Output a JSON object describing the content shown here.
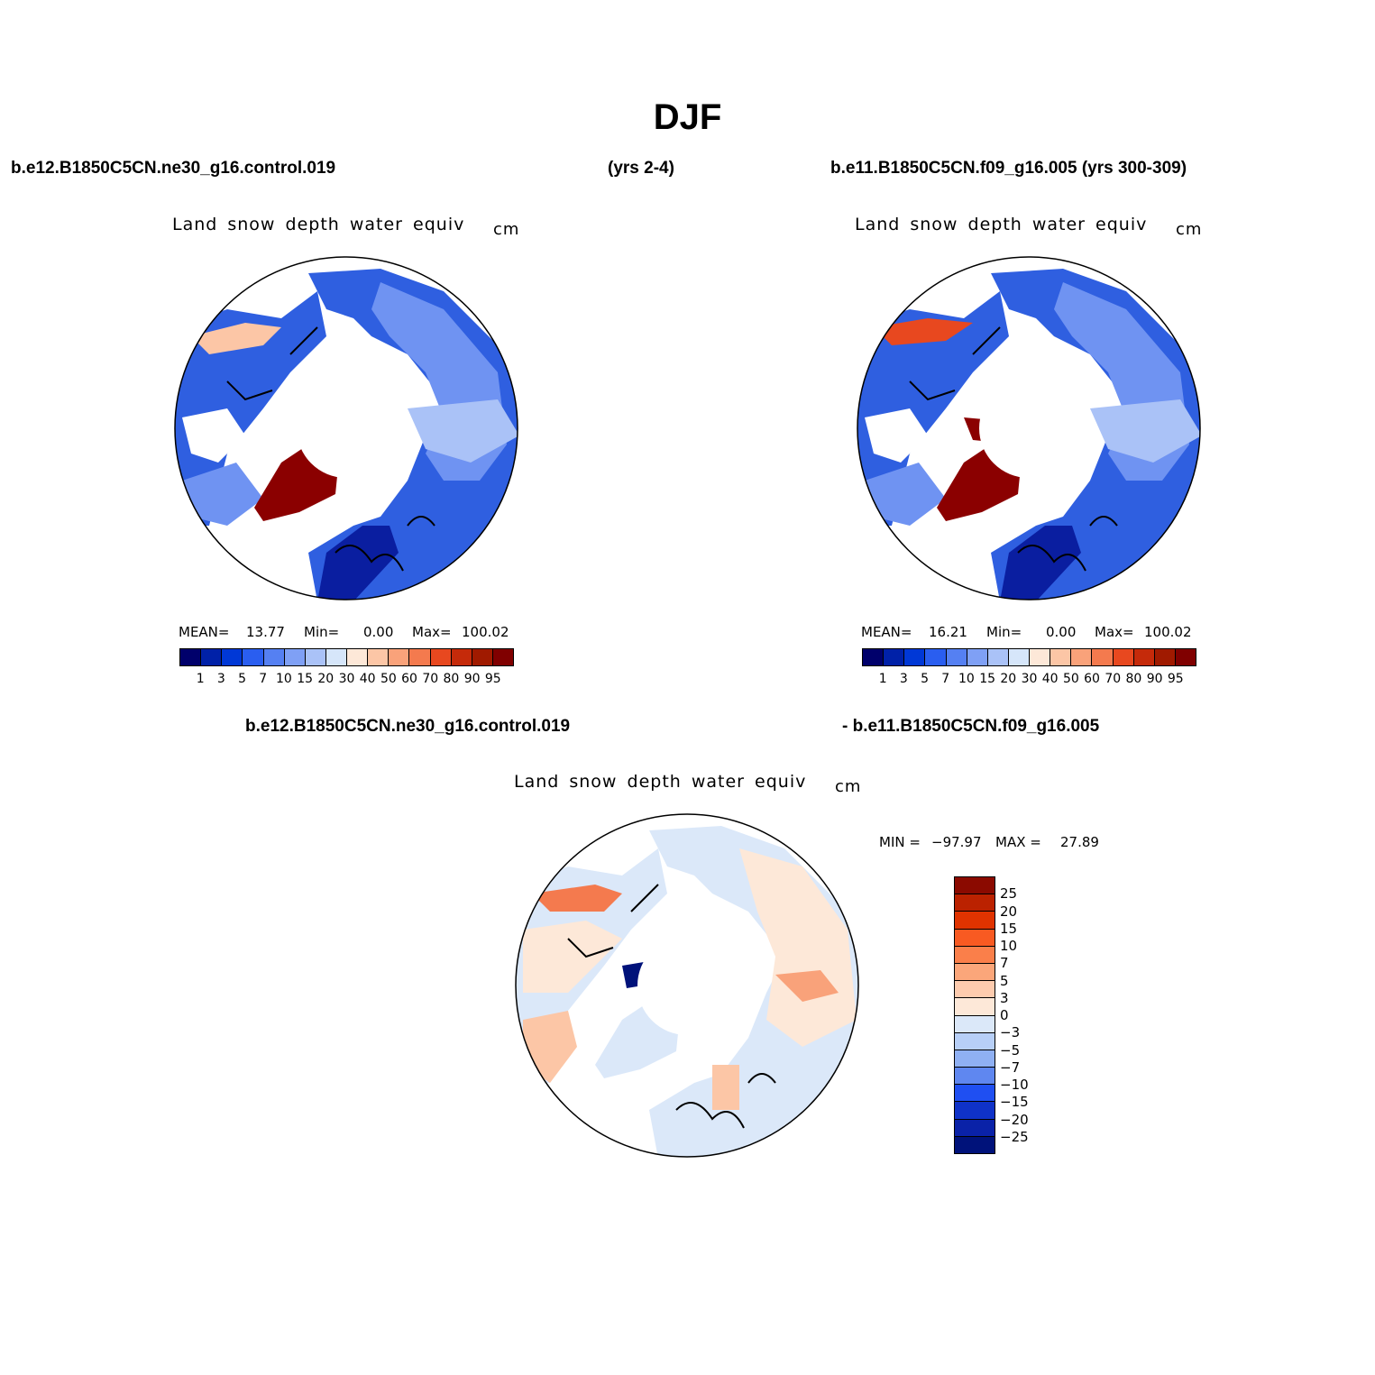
{
  "title": "DJF",
  "top_left_case": "b.e12.B1850C5CN.ne30_g16.control.019",
  "top_left_years": "(yrs 2-4)",
  "top_right_case": "b.e11.B1850C5CN.f09_g16.005 (yrs 300-309)",
  "bottom_case_a": "b.e12.B1850C5CN.ne30_g16.control.019",
  "bottom_case_b": "- b.e11.B1850C5CN.f09_g16.005",
  "variable": "Land snow depth water equiv",
  "units": "cm",
  "panels": {
    "left": {
      "mean_label": "MEAN=",
      "mean": "13.77",
      "min_label": "Min=",
      "min": "0.00",
      "max_label": "Max=",
      "max": "100.02"
    },
    "right": {
      "mean_label": "MEAN=",
      "mean": "16.21",
      "min_label": "Min=",
      "min": "0.00",
      "max_label": "Max=",
      "max": "100.02"
    },
    "diff": {
      "min_label": "MIN =",
      "min": "−97.97",
      "max_label": "MAX =",
      "max": "27.89"
    }
  },
  "abs_colorbar": {
    "labels": [
      "1",
      "3",
      "5",
      "7",
      "10",
      "15",
      "20",
      "30",
      "40",
      "50",
      "60",
      "70",
      "80",
      "90",
      "95"
    ],
    "colors": [
      "#00006b",
      "#0021a8",
      "#0038d6",
      "#2a5ef0",
      "#5580f2",
      "#7fa0f5",
      "#aac2f7",
      "#d6e6fa",
      "#fde8d8",
      "#fcc6a6",
      "#f9a27a",
      "#f47a4e",
      "#e8481f",
      "#c52a0a",
      "#a01a00",
      "#800000"
    ]
  },
  "diff_colorbar": {
    "labels": [
      "25",
      "20",
      "15",
      "10",
      "7",
      "5",
      "3",
      "0",
      "−3",
      "−5",
      "−7",
      "−10",
      "−15",
      "−20",
      "−25"
    ],
    "colors": [
      "#8b0a00",
      "#bb2200",
      "#e03300",
      "#f85a22",
      "#fa7f4a",
      "#fba67a",
      "#fdcbae",
      "#fde8d8",
      "#dbe8f9",
      "#b7cff7",
      "#8fb0f3",
      "#5f87f0",
      "#1f4ff2",
      "#0f32c8",
      "#0a22a8",
      "#00127a"
    ]
  }
}
